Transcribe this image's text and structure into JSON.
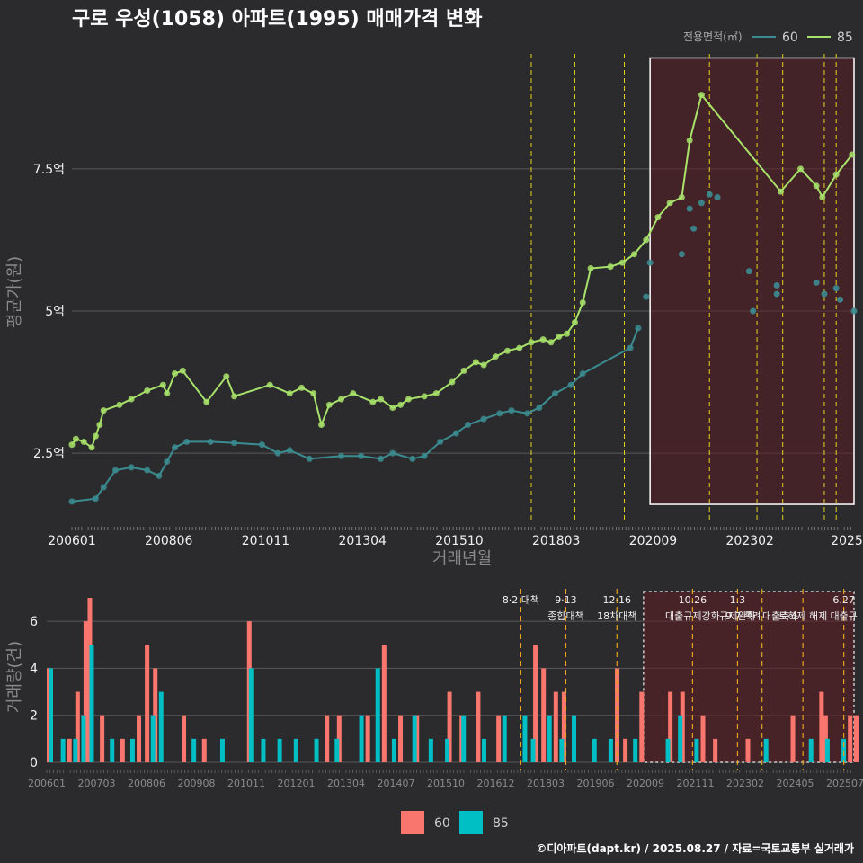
{
  "chart_data": [
    {
      "type": "line",
      "title": "구로 우성(1058) 아파트(1995) 매매가격 변화",
      "xlabel": "거래년월",
      "ylabel": "평균가(원)",
      "x_ticks": [
        "200601",
        "200806",
        "201011",
        "201304",
        "201510",
        "201803",
        "202009",
        "202302",
        "2025"
      ],
      "y_ticks": [
        {
          "value": 2.5,
          "label": "2.5억"
        },
        {
          "value": 5,
          "label": "5억"
        },
        {
          "value": 7.5,
          "label": "7.5억"
        }
      ],
      "xlim": [
        2006.0,
        2025.75
      ],
      "ylim": [
        1.3,
        9.6
      ],
      "legend_title": "전용면적(㎡)",
      "series": [
        {
          "name": "85",
          "color": "#a8e26a",
          "points": [
            [
              2006.0,
              2.65
            ],
            [
              2006.1,
              2.75
            ],
            [
              2006.3,
              2.7
            ],
            [
              2006.5,
              2.6
            ],
            [
              2006.6,
              2.8
            ],
            [
              2006.7,
              3.0
            ],
            [
              2006.8,
              3.25
            ],
            [
              2007.2,
              3.35
            ],
            [
              2007.5,
              3.45
            ],
            [
              2007.9,
              3.6
            ],
            [
              2008.3,
              3.7
            ],
            [
              2008.4,
              3.55
            ],
            [
              2008.6,
              3.9
            ],
            [
              2008.8,
              3.95
            ],
            [
              2009.4,
              3.4
            ],
            [
              2009.9,
              3.85
            ],
            [
              2010.1,
              3.5
            ],
            [
              2011.0,
              3.7
            ],
            [
              2011.5,
              3.55
            ],
            [
              2011.8,
              3.65
            ],
            [
              2012.1,
              3.55
            ],
            [
              2012.3,
              3.0
            ],
            [
              2012.5,
              3.35
            ],
            [
              2012.8,
              3.45
            ],
            [
              2013.1,
              3.55
            ],
            [
              2013.6,
              3.4
            ],
            [
              2013.8,
              3.45
            ],
            [
              2014.1,
              3.3
            ],
            [
              2014.3,
              3.35
            ],
            [
              2014.5,
              3.45
            ],
            [
              2014.9,
              3.5
            ],
            [
              2015.2,
              3.55
            ],
            [
              2015.6,
              3.75
            ],
            [
              2015.9,
              3.95
            ],
            [
              2016.2,
              4.1
            ],
            [
              2016.4,
              4.05
            ],
            [
              2016.7,
              4.2
            ],
            [
              2017.0,
              4.3
            ],
            [
              2017.3,
              4.35
            ],
            [
              2017.6,
              4.45
            ],
            [
              2017.9,
              4.5
            ],
            [
              2018.1,
              4.45
            ],
            [
              2018.3,
              4.55
            ],
            [
              2018.5,
              4.6
            ],
            [
              2018.7,
              4.8
            ],
            [
              2018.9,
              5.15
            ],
            [
              2019.1,
              5.75
            ],
            [
              2019.6,
              5.78
            ],
            [
              2019.9,
              5.85
            ],
            [
              2020.2,
              6.0
            ],
            [
              2020.5,
              6.25
            ],
            [
              2020.8,
              6.65
            ],
            [
              2021.1,
              6.9
            ],
            [
              2021.4,
              7.0
            ],
            [
              2021.6,
              8.0
            ],
            [
              2021.9,
              8.8
            ],
            [
              2023.9,
              7.1
            ],
            [
              2024.4,
              7.5
            ],
            [
              2024.8,
              7.2
            ],
            [
              2024.95,
              7.0
            ],
            [
              2025.3,
              7.4
            ],
            [
              2025.7,
              7.75
            ]
          ]
        },
        {
          "name": "60",
          "color": "#3b8c91",
          "points": [
            [
              2006.0,
              1.65
            ],
            [
              2006.6,
              1.7
            ],
            [
              2006.8,
              1.9
            ],
            [
              2007.1,
              2.2
            ],
            [
              2007.5,
              2.25
            ],
            [
              2007.9,
              2.2
            ],
            [
              2008.2,
              2.1
            ],
            [
              2008.4,
              2.35
            ],
            [
              2008.6,
              2.6
            ],
            [
              2008.9,
              2.7
            ],
            [
              2009.5,
              2.7
            ],
            [
              2010.1,
              2.68
            ],
            [
              2010.8,
              2.65
            ],
            [
              2011.2,
              2.5
            ],
            [
              2011.5,
              2.55
            ],
            [
              2012.0,
              2.4
            ],
            [
              2012.8,
              2.45
            ],
            [
              2013.3,
              2.45
            ],
            [
              2013.8,
              2.4
            ],
            [
              2014.1,
              2.5
            ],
            [
              2014.6,
              2.4
            ],
            [
              2014.9,
              2.45
            ],
            [
              2015.3,
              2.7
            ],
            [
              2015.7,
              2.85
            ],
            [
              2016.0,
              3.0
            ],
            [
              2016.4,
              3.1
            ],
            [
              2016.8,
              3.2
            ],
            [
              2017.1,
              3.25
            ],
            [
              2017.5,
              3.2
            ],
            [
              2017.8,
              3.3
            ],
            [
              2018.2,
              3.55
            ],
            [
              2018.6,
              3.7
            ],
            [
              2018.9,
              3.9
            ],
            [
              2020.1,
              4.35
            ],
            [
              2020.3,
              4.7
            ]
          ]
        }
      ],
      "scatter_60": [
        [
          2020.5,
          5.25
        ],
        [
          2020.6,
          5.85
        ],
        [
          2021.4,
          6.0
        ],
        [
          2021.6,
          6.8
        ],
        [
          2021.7,
          6.45
        ],
        [
          2021.9,
          6.9
        ],
        [
          2022.1,
          7.05
        ],
        [
          2022.3,
          7.0
        ],
        [
          2023.1,
          5.7
        ],
        [
          2023.2,
          5.0
        ],
        [
          2023.8,
          5.45
        ],
        [
          2023.8,
          5.3
        ],
        [
          2024.8,
          5.5
        ],
        [
          2025.0,
          5.3
        ],
        [
          2025.3,
          5.4
        ],
        [
          2025.4,
          5.2
        ],
        [
          2025.75,
          5.0
        ]
      ],
      "policy_lines_x": [
        2017.6,
        2018.7,
        2019.95,
        2022.1,
        2023.3,
        2023.95,
        2025.0,
        2025.3
      ],
      "highlight_x": [
        2020.6,
        2025.75
      ]
    },
    {
      "type": "bar",
      "ylabel": "거래량(건)",
      "ylim": [
        0,
        7
      ],
      "y_ticks": [
        0,
        2,
        4,
        6
      ],
      "x_ticks": [
        "200601",
        "200703",
        "200806",
        "200908",
        "201011",
        "201201",
        "201304",
        "201407",
        "201510",
        "201612",
        "201803",
        "201906",
        "202009",
        "202111",
        "202302",
        "202405",
        "202507"
      ],
      "series": [
        {
          "name": "60",
          "color": "#f8766d",
          "values": [
            [
              2006.0,
              4
            ],
            [
              2006.5,
              1
            ],
            [
              2006.7,
              3
            ],
            [
              2006.9,
              6
            ],
            [
              2007.0,
              7
            ],
            [
              2007.3,
              2
            ],
            [
              2007.8,
              1
            ],
            [
              2008.2,
              2
            ],
            [
              2008.4,
              5
            ],
            [
              2008.6,
              4
            ],
            [
              2009.3,
              2
            ],
            [
              2009.8,
              1
            ],
            [
              2010.9,
              6
            ],
            [
              2012.8,
              2
            ],
            [
              2013.1,
              2
            ],
            [
              2013.8,
              2
            ],
            [
              2014.2,
              5
            ],
            [
              2014.6,
              2
            ],
            [
              2015.0,
              2
            ],
            [
              2015.8,
              3
            ],
            [
              2016.1,
              2
            ],
            [
              2016.5,
              3
            ],
            [
              2017.0,
              2
            ],
            [
              2017.9,
              5
            ],
            [
              2018.1,
              4
            ],
            [
              2018.4,
              3
            ],
            [
              2018.6,
              3
            ],
            [
              2019.9,
              4
            ],
            [
              2020.1,
              1
            ],
            [
              2020.5,
              3
            ],
            [
              2021.2,
              3
            ],
            [
              2021.5,
              3
            ],
            [
              2022.0,
              2
            ],
            [
              2022.3,
              1
            ],
            [
              2023.1,
              1
            ],
            [
              2024.2,
              2
            ],
            [
              2024.9,
              3
            ],
            [
              2025.0,
              2
            ],
            [
              2025.6,
              2
            ],
            [
              2025.75,
              2
            ]
          ]
        },
        {
          "name": "85",
          "color": "#00bfc4",
          "values": [
            [
              2006.0,
              4
            ],
            [
              2006.3,
              1
            ],
            [
              2006.6,
              1
            ],
            [
              2006.8,
              2
            ],
            [
              2007.0,
              5
            ],
            [
              2007.5,
              1
            ],
            [
              2008.0,
              1
            ],
            [
              2008.5,
              2
            ],
            [
              2008.7,
              3
            ],
            [
              2009.5,
              1
            ],
            [
              2010.2,
              1
            ],
            [
              2010.9,
              4
            ],
            [
              2011.2,
              1
            ],
            [
              2011.6,
              1
            ],
            [
              2012.0,
              1
            ],
            [
              2012.5,
              1
            ],
            [
              2013.0,
              1
            ],
            [
              2013.6,
              2
            ],
            [
              2014.0,
              4
            ],
            [
              2014.4,
              1
            ],
            [
              2014.9,
              2
            ],
            [
              2015.3,
              1
            ],
            [
              2015.7,
              1
            ],
            [
              2016.1,
              2
            ],
            [
              2016.6,
              1
            ],
            [
              2017.1,
              2
            ],
            [
              2017.6,
              2
            ],
            [
              2017.8,
              1
            ],
            [
              2018.2,
              2
            ],
            [
              2018.5,
              1
            ],
            [
              2018.8,
              2
            ],
            [
              2019.3,
              1
            ],
            [
              2019.7,
              1
            ],
            [
              2020.3,
              1
            ],
            [
              2021.1,
              1
            ],
            [
              2021.4,
              2
            ],
            [
              2021.8,
              1
            ],
            [
              2023.5,
              1
            ],
            [
              2024.6,
              1
            ],
            [
              2025.0,
              1
            ],
            [
              2025.4,
              1
            ]
          ]
        }
      ],
      "events": [
        {
          "x": 2017.6,
          "line1": "8·2 대책",
          "line2": ""
        },
        {
          "x": 2018.7,
          "line1": "9·13",
          "line2": "종합대책"
        },
        {
          "x": 2019.95,
          "line1": "12·16",
          "line2": "18차대책"
        },
        {
          "x": 2021.8,
          "line1": "10.26",
          "line2": "대출규제강화"
        },
        {
          "x": 2022.9,
          "line1": "1.3",
          "line2": "규제완화"
        },
        {
          "x": 2023.5,
          "line1": "",
          "line2": "9.7 특례대출축소"
        },
        {
          "x": 2024.5,
          "line1": "",
          "line2": "토허제 해제"
        },
        {
          "x": 2025.5,
          "line1": "6.27",
          "line2": "대출규"
        }
      ],
      "highlight_x": [
        2020.6,
        2025.75
      ]
    }
  ],
  "caption": "©디아파트(dapt.kr) / 2025.08.27 / 자료=국토교통부 실거래가"
}
